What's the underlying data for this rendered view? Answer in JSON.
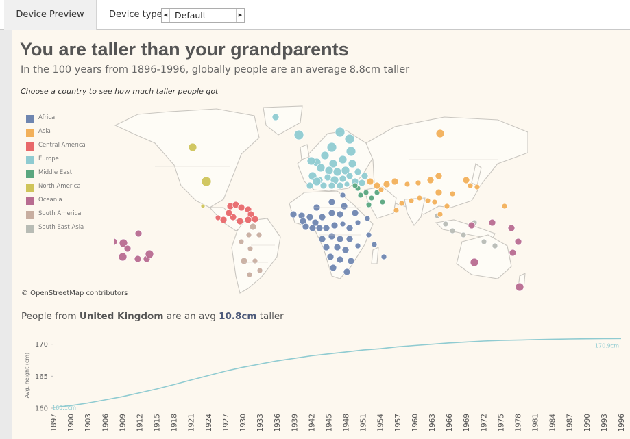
{
  "toolbar": {
    "preview_tab": "Device Preview",
    "device_type_label": "Device type",
    "device_type_value": "Default",
    "left_arrow": "◀",
    "right_arrow": "▶"
  },
  "header": {
    "title": "You are taller than your grandparents",
    "subtitle": "In the 100 years from 1896-1996, globally people are an average 8.8cm taller",
    "instruction": "Choose a country to see how much taller people got"
  },
  "legend": {
    "items": [
      {
        "label": "Africa",
        "color": "#6f86b0"
      },
      {
        "label": "Asia",
        "color": "#f2b05a"
      },
      {
        "label": "Central America",
        "color": "#e8686a"
      },
      {
        "label": "Europe",
        "color": "#8fcbd1"
      },
      {
        "label": "Middle East",
        "color": "#5aa780"
      },
      {
        "label": "North America",
        "color": "#cfc45a"
      },
      {
        "label": "Oceania",
        "color": "#b86c90"
      },
      {
        "label": "South America",
        "color": "#c8aea0"
      },
      {
        "label": "South East Asia",
        "color": "#b8bcb5"
      }
    ]
  },
  "map": {
    "attribution": "© OpenStreetMap contributors"
  },
  "summary": {
    "prefix": "People from ",
    "country": "United Kingdom",
    "middle": " are an avg ",
    "value": "10.8cm",
    "suffix": " taller"
  },
  "chart_data": {
    "type": "line",
    "title": "",
    "xlabel": "",
    "ylabel": "Avg. height (cm)",
    "ylim": [
      160,
      172
    ],
    "yticks": [
      160,
      165,
      170
    ],
    "xticks": [
      "1897",
      "1900",
      "1903",
      "1906",
      "1909",
      "1912",
      "1915",
      "1918",
      "1921",
      "1924",
      "1927",
      "1930",
      "1933",
      "1936",
      "1939",
      "1942",
      "1945",
      "1948",
      "1951",
      "1954",
      "1957",
      "1960",
      "1963",
      "1966",
      "1969",
      "1972",
      "1975",
      "1978",
      "1981",
      "1984",
      "1987",
      "1990",
      "1993",
      "1996"
    ],
    "series": [
      {
        "color": "#8fcbd1",
        "x": [
          "1897",
          "1900",
          "1903",
          "1906",
          "1909",
          "1912",
          "1915",
          "1918",
          "1921",
          "1924",
          "1927",
          "1930",
          "1933",
          "1936",
          "1939",
          "1942",
          "1945",
          "1948",
          "1951",
          "1954",
          "1957",
          "1960",
          "1963",
          "1966",
          "1969",
          "1972",
          "1975",
          "1978",
          "1981",
          "1984",
          "1987",
          "1990",
          "1993",
          "1996"
        ],
        "values": [
          160.1,
          160.4,
          160.8,
          161.3,
          161.8,
          162.4,
          163.0,
          163.7,
          164.4,
          165.1,
          165.8,
          166.4,
          166.9,
          167.4,
          167.8,
          168.2,
          168.5,
          168.8,
          169.1,
          169.3,
          169.6,
          169.8,
          170.0,
          170.2,
          170.35,
          170.5,
          170.6,
          170.65,
          170.72,
          170.78,
          170.82,
          170.85,
          170.88,
          170.9
        ],
        "start_label": "160.1cm",
        "end_label": "170.9cm"
      }
    ]
  }
}
